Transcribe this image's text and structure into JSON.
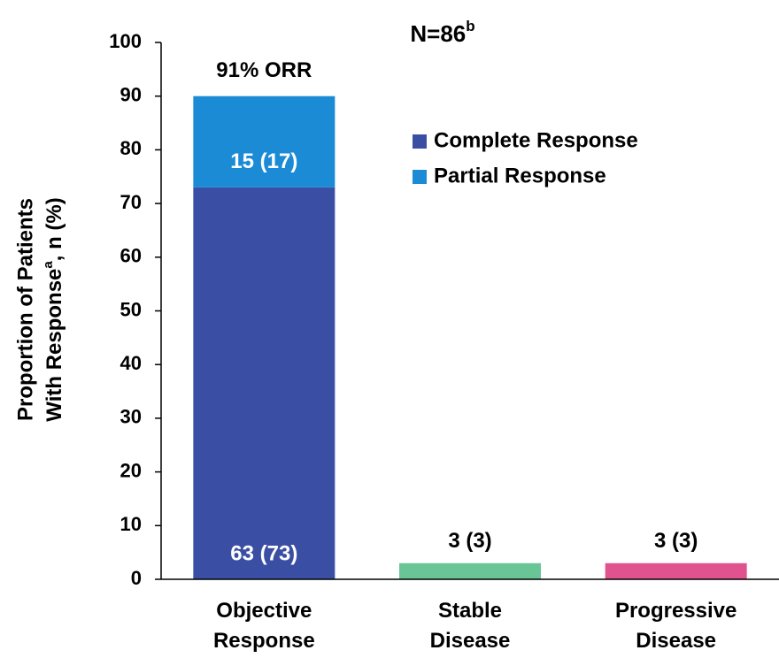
{
  "chart_data": {
    "type": "stacked_bar",
    "title": {
      "text": "N=86",
      "sup": "b"
    },
    "ylabel": {
      "line1": "Proportion of Patients",
      "line2": "With Response",
      "line2_sup": "a",
      "line2_end": ", n (%)"
    },
    "categories": [
      "Objective Response",
      "Stable Disease",
      "Progressive Disease"
    ],
    "stack_labels": [
      "91% ORR",
      null,
      null
    ],
    "series": [
      {
        "name": "Complete Response",
        "color": "#3a4ea3",
        "values": [
          73,
          null,
          null
        ],
        "value_labels": [
          "63 (73)",
          null,
          null
        ]
      },
      {
        "name": "Partial Response",
        "color": "#1b8bd6",
        "values": [
          17,
          null,
          null
        ],
        "value_labels": [
          "15 (17)",
          null,
          null
        ]
      },
      {
        "color": "#69c496",
        "values": [
          null,
          3,
          null
        ],
        "value_labels": [
          null,
          "3 (3)",
          null
        ]
      },
      {
        "color": "#e0538f",
        "values": [
          null,
          null,
          3
        ],
        "value_labels": [
          null,
          null,
          "3 (3)"
        ]
      }
    ],
    "ylim": [
      0,
      100
    ],
    "yticks": [
      0,
      10,
      20,
      30,
      40,
      50,
      60,
      70,
      80,
      90,
      100
    ]
  }
}
